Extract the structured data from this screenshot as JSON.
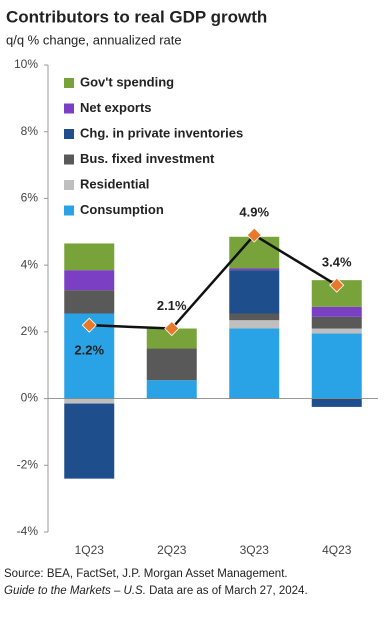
{
  "chart_data": {
    "type": "stacked-bar-line",
    "title": "Contributors to real GDP growth",
    "subtitle": "q/q % change, annualized rate",
    "categories": [
      "1Q23",
      "2Q23",
      "3Q23",
      "4Q23"
    ],
    "series": [
      {
        "name": "Consumption",
        "color": "#29a3e6",
        "values": [
          2.55,
          0.55,
          2.1,
          1.95
        ]
      },
      {
        "name": "Residential",
        "color": "#bfbfbf",
        "values": [
          -0.15,
          0,
          0.25,
          0.15
        ]
      },
      {
        "name": "Bus. fixed investment",
        "color": "#595959",
        "values": [
          0.7,
          0.95,
          0.2,
          0.35
        ]
      },
      {
        "name": "Chg. in private inventories",
        "color": "#1f4e8c",
        "values": [
          -2.25,
          0,
          1.3,
          -0.25
        ]
      },
      {
        "name": "Net exports",
        "color": "#7b3fc4",
        "values": [
          0.6,
          0,
          0.05,
          0.3
        ]
      },
      {
        "name": "Gov't spending",
        "color": "#78a23a",
        "values": [
          0.8,
          0.6,
          0.95,
          0.8
        ]
      }
    ],
    "line": {
      "color": "#111111",
      "marker_color": "#e8792a",
      "values": [
        2.2,
        2.1,
        4.9,
        3.4
      ],
      "value_labels": [
        "2.2%",
        "2.1%",
        "4.9%",
        "3.4%"
      ]
    },
    "ylim": [
      -4,
      10
    ],
    "yticks": [
      {
        "value": -4,
        "label": "-4%"
      },
      {
        "value": -2,
        "label": "-2%"
      },
      {
        "value": 0,
        "label": "0%"
      },
      {
        "value": 2,
        "label": "2%"
      },
      {
        "value": 4,
        "label": "4%"
      },
      {
        "value": 6,
        "label": "6%"
      },
      {
        "value": 8,
        "label": "8%"
      },
      {
        "value": 10,
        "label": "10%"
      }
    ],
    "source": "Source: BEA, FactSet, J.P. Morgan Asset Management.",
    "guide": "Guide to the Markets – U.S.",
    "as_of": "Data are as of March 27, 2024."
  }
}
